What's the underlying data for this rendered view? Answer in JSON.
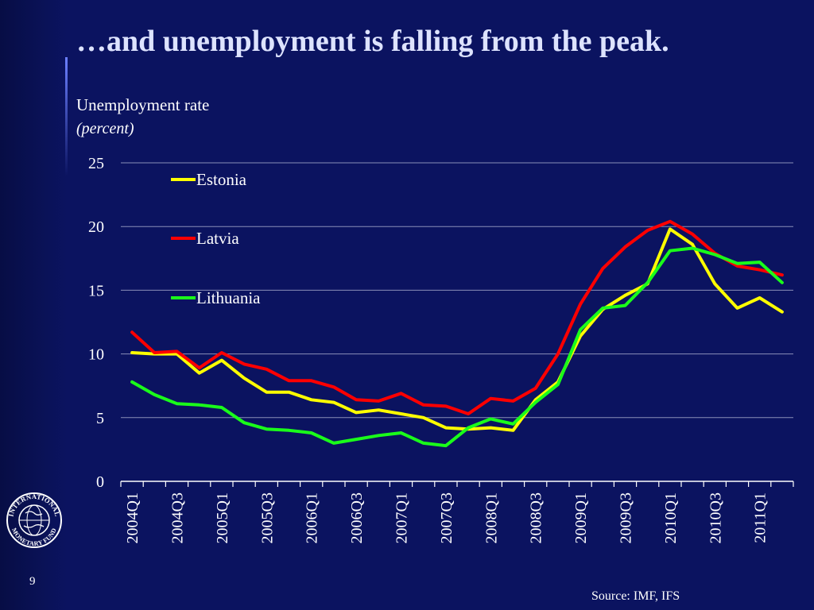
{
  "slide": {
    "title": "…and unemployment is falling from the peak.",
    "page_number": "9",
    "source": "Source: IMF, IFS",
    "logo_text": "INTERNATIONAL MONETARY FUND"
  },
  "chart_data": {
    "type": "line",
    "title": "Unemployment rate",
    "subtitle": "(percent)",
    "xlabel": "",
    "ylabel": "",
    "ylim": [
      0,
      25
    ],
    "yticks": [
      0,
      5,
      10,
      15,
      20,
      25
    ],
    "grid": true,
    "legend": "top-left",
    "categories": [
      "2004Q1",
      "2004Q2",
      "2004Q3",
      "2004Q4",
      "2005Q1",
      "2005Q2",
      "2005Q3",
      "2005Q4",
      "2006Q1",
      "2006Q2",
      "2006Q3",
      "2006Q4",
      "2007Q1",
      "2007Q2",
      "2007Q3",
      "2007Q4",
      "2008Q1",
      "2008Q2",
      "2008Q3",
      "2008Q4",
      "2009Q1",
      "2009Q2",
      "2009Q3",
      "2009Q4",
      "2010Q1",
      "2010Q2",
      "2010Q3",
      "2010Q4",
      "2011Q1",
      "2011Q2"
    ],
    "tick_labels": [
      "2004Q1",
      "2004Q3",
      "2005Q1",
      "2005Q3",
      "2006Q1",
      "2006Q3",
      "2007Q1",
      "2007Q3",
      "2008Q1",
      "2008Q3",
      "2009Q1",
      "2009Q3",
      "2010Q1",
      "2010Q3",
      "2011Q1"
    ],
    "series": [
      {
        "name": "Estonia",
        "color": "#ffff00",
        "values": [
          10.1,
          10.0,
          10.0,
          8.5,
          9.5,
          8.1,
          7.0,
          7.0,
          6.4,
          6.2,
          5.4,
          5.6,
          5.3,
          5.0,
          4.2,
          4.1,
          4.2,
          4.0,
          6.4,
          7.8,
          11.4,
          13.5,
          14.6,
          15.5,
          19.8,
          18.6,
          15.5,
          13.6,
          14.4,
          13.3
        ]
      },
      {
        "name": "Latvia",
        "color": "#ff0000",
        "values": [
          11.7,
          10.1,
          10.2,
          8.9,
          10.1,
          9.2,
          8.8,
          7.9,
          7.9,
          7.4,
          6.4,
          6.3,
          6.9,
          6.0,
          5.9,
          5.3,
          6.5,
          6.3,
          7.3,
          10.0,
          13.9,
          16.7,
          18.4,
          19.7,
          20.4,
          19.4,
          17.9,
          16.9,
          16.6,
          16.2
        ]
      },
      {
        "name": "Lithuania",
        "color": "#1aff1a",
        "values": [
          7.8,
          6.8,
          6.1,
          6.0,
          5.8,
          4.6,
          4.1,
          4.0,
          3.8,
          3.0,
          3.3,
          3.6,
          3.8,
          3.0,
          2.8,
          4.2,
          4.9,
          4.5,
          6.2,
          7.6,
          11.9,
          13.6,
          13.8,
          15.6,
          18.1,
          18.3,
          17.8,
          17.1,
          17.2,
          15.6
        ]
      }
    ]
  }
}
